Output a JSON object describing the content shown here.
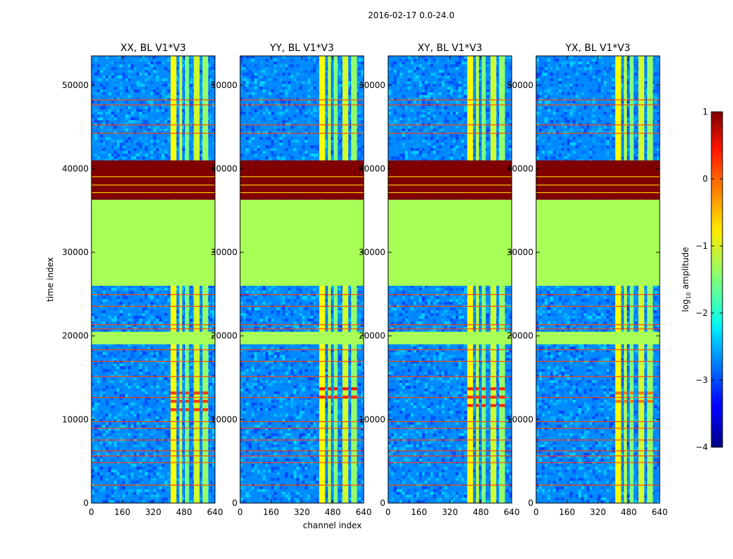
{
  "figure": {
    "suptitle": "2016-02-17 0.0-24.0"
  },
  "chart_data": {
    "type": "heatmap",
    "title": "2016-02-17 0.0-24.0",
    "xlabel": "channel index",
    "ylabel": "time index",
    "xlim": [
      0,
      640
    ],
    "ylim": [
      0,
      53500
    ],
    "xticks": [
      0,
      160,
      320,
      480,
      640
    ],
    "yticks": [
      0,
      10000,
      20000,
      30000,
      40000,
      50000
    ],
    "colorbar": {
      "label_main": "log",
      "label_sub": "10",
      "label_tail": " amplitude",
      "ticks": [
        1,
        0,
        -1,
        -2,
        -3,
        -4
      ],
      "range": [
        -4,
        1
      ],
      "colormap": "jet"
    },
    "panels": [
      {
        "title": "XX, BL V1*V3",
        "polarization": "XX",
        "rfi_rows": [
          11000,
          12000,
          13000
        ],
        "rfi_level": 0.1
      },
      {
        "title": "YY, BL V1*V3",
        "polarization": "YY",
        "rfi_rows": [
          12500,
          13500
        ],
        "rfi_level": 0.3
      },
      {
        "title": "XY, BL V1*V3",
        "polarization": "XY",
        "rfi_rows": [
          11500,
          12500,
          13500
        ],
        "rfi_level": 0.2
      },
      {
        "title": "YX, BL V1*V3",
        "polarization": "YX",
        "rfi_rows": [
          12000,
          13000
        ],
        "rfi_level": -0.2
      }
    ],
    "regions": [
      {
        "name": "noise-floor",
        "t_start": 0,
        "t_end": 53500,
        "log_amp": -2.7
      },
      {
        "name": "flagged-uniform",
        "t_start": 26000,
        "t_end": 36300,
        "log_amp": -1.3
      },
      {
        "name": "saturated",
        "t_start": 36300,
        "t_end": 41000,
        "log_amp": 1.0
      },
      {
        "name": "flagged-uniform",
        "t_start": 19000,
        "t_end": 20500,
        "log_amp": -1.3
      }
    ],
    "bright_channels": [
      {
        "start": 410,
        "end": 440,
        "log_amp": -0.9
      },
      {
        "start": 455,
        "end": 470,
        "log_amp": -1.2
      },
      {
        "start": 485,
        "end": 505,
        "log_amp": -1.5
      },
      {
        "start": 530,
        "end": 560,
        "log_amp": -1.1
      },
      {
        "start": 575,
        "end": 605,
        "log_amp": -1.4
      }
    ]
  }
}
